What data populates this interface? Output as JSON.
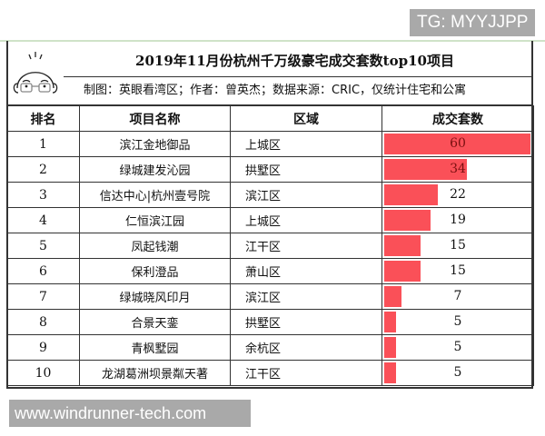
{
  "watermark_top": "TG: MYYJJPP",
  "watermark_bottom": "www.windrunner-tech.com",
  "header": {
    "title": "2019年11月份杭州千万级豪宅成交套数top10项目",
    "subtitle": "制图：英眼看湾区；作者：曾英杰；数据来源：CRIC，仅统计住宅和公寓",
    "avatar_icon": "bald-man-with-glasses-icon"
  },
  "table": {
    "columns": [
      "排名",
      "项目名称",
      "区域",
      "成交套数"
    ],
    "rows": [
      {
        "rank": "1",
        "name": "滨江金地御品",
        "area": "上城区",
        "count": 60
      },
      {
        "rank": "2",
        "name": "绿城建发沁园",
        "area": "拱墅区",
        "count": 34
      },
      {
        "rank": "3",
        "name": "信达中心|杭州壹号院",
        "area": "滨江区",
        "count": 22
      },
      {
        "rank": "4",
        "name": "仁恒滨江园",
        "area": "上城区",
        "count": 19
      },
      {
        "rank": "5",
        "name": "凤起钱潮",
        "area": "江干区",
        "count": 15
      },
      {
        "rank": "6",
        "name": "保利澄品",
        "area": "萧山区",
        "count": 15
      },
      {
        "rank": "7",
        "name": "绿城晓风印月",
        "area": "滨江区",
        "count": 7
      },
      {
        "rank": "8",
        "name": "合景天銮",
        "area": "拱墅区",
        "count": 5
      },
      {
        "rank": "9",
        "name": "青枫墅园",
        "area": "余杭区",
        "count": 5
      },
      {
        "rank": "10",
        "name": "龙湖葛洲坝景粼天著",
        "area": "江干区",
        "count": 5
      }
    ]
  },
  "colors": {
    "bar": "#fa5058",
    "border": "#333333",
    "watermark_bg": "#a9a9a9"
  },
  "chart_data": {
    "type": "bar",
    "orientation": "horizontal",
    "title": "2019年11月份杭州千万级豪宅成交套数top10项目",
    "subtitle": "制图：英眼看湾区；作者：曾英杰；数据来源：CRIC，仅统计住宅和公寓",
    "categories": [
      "滨江金地御品",
      "绿城建发沁园",
      "信达中心|杭州壹号院",
      "仁恒滨江园",
      "凤起钱潮",
      "保利澄品",
      "绿城晓风印月",
      "合景天銮",
      "青枫墅园",
      "龙湖葛洲坝景粼天著"
    ],
    "values": [
      60,
      34,
      22,
      19,
      15,
      15,
      7,
      5,
      5,
      5
    ],
    "regions": [
      "上城区",
      "拱墅区",
      "滨江区",
      "上城区",
      "江干区",
      "萧山区",
      "滨江区",
      "拱墅区",
      "余杭区",
      "江干区"
    ],
    "xlabel": "",
    "ylabel": "成交套数",
    "value_column_label": "成交套数",
    "xlim": [
      0,
      60
    ]
  }
}
